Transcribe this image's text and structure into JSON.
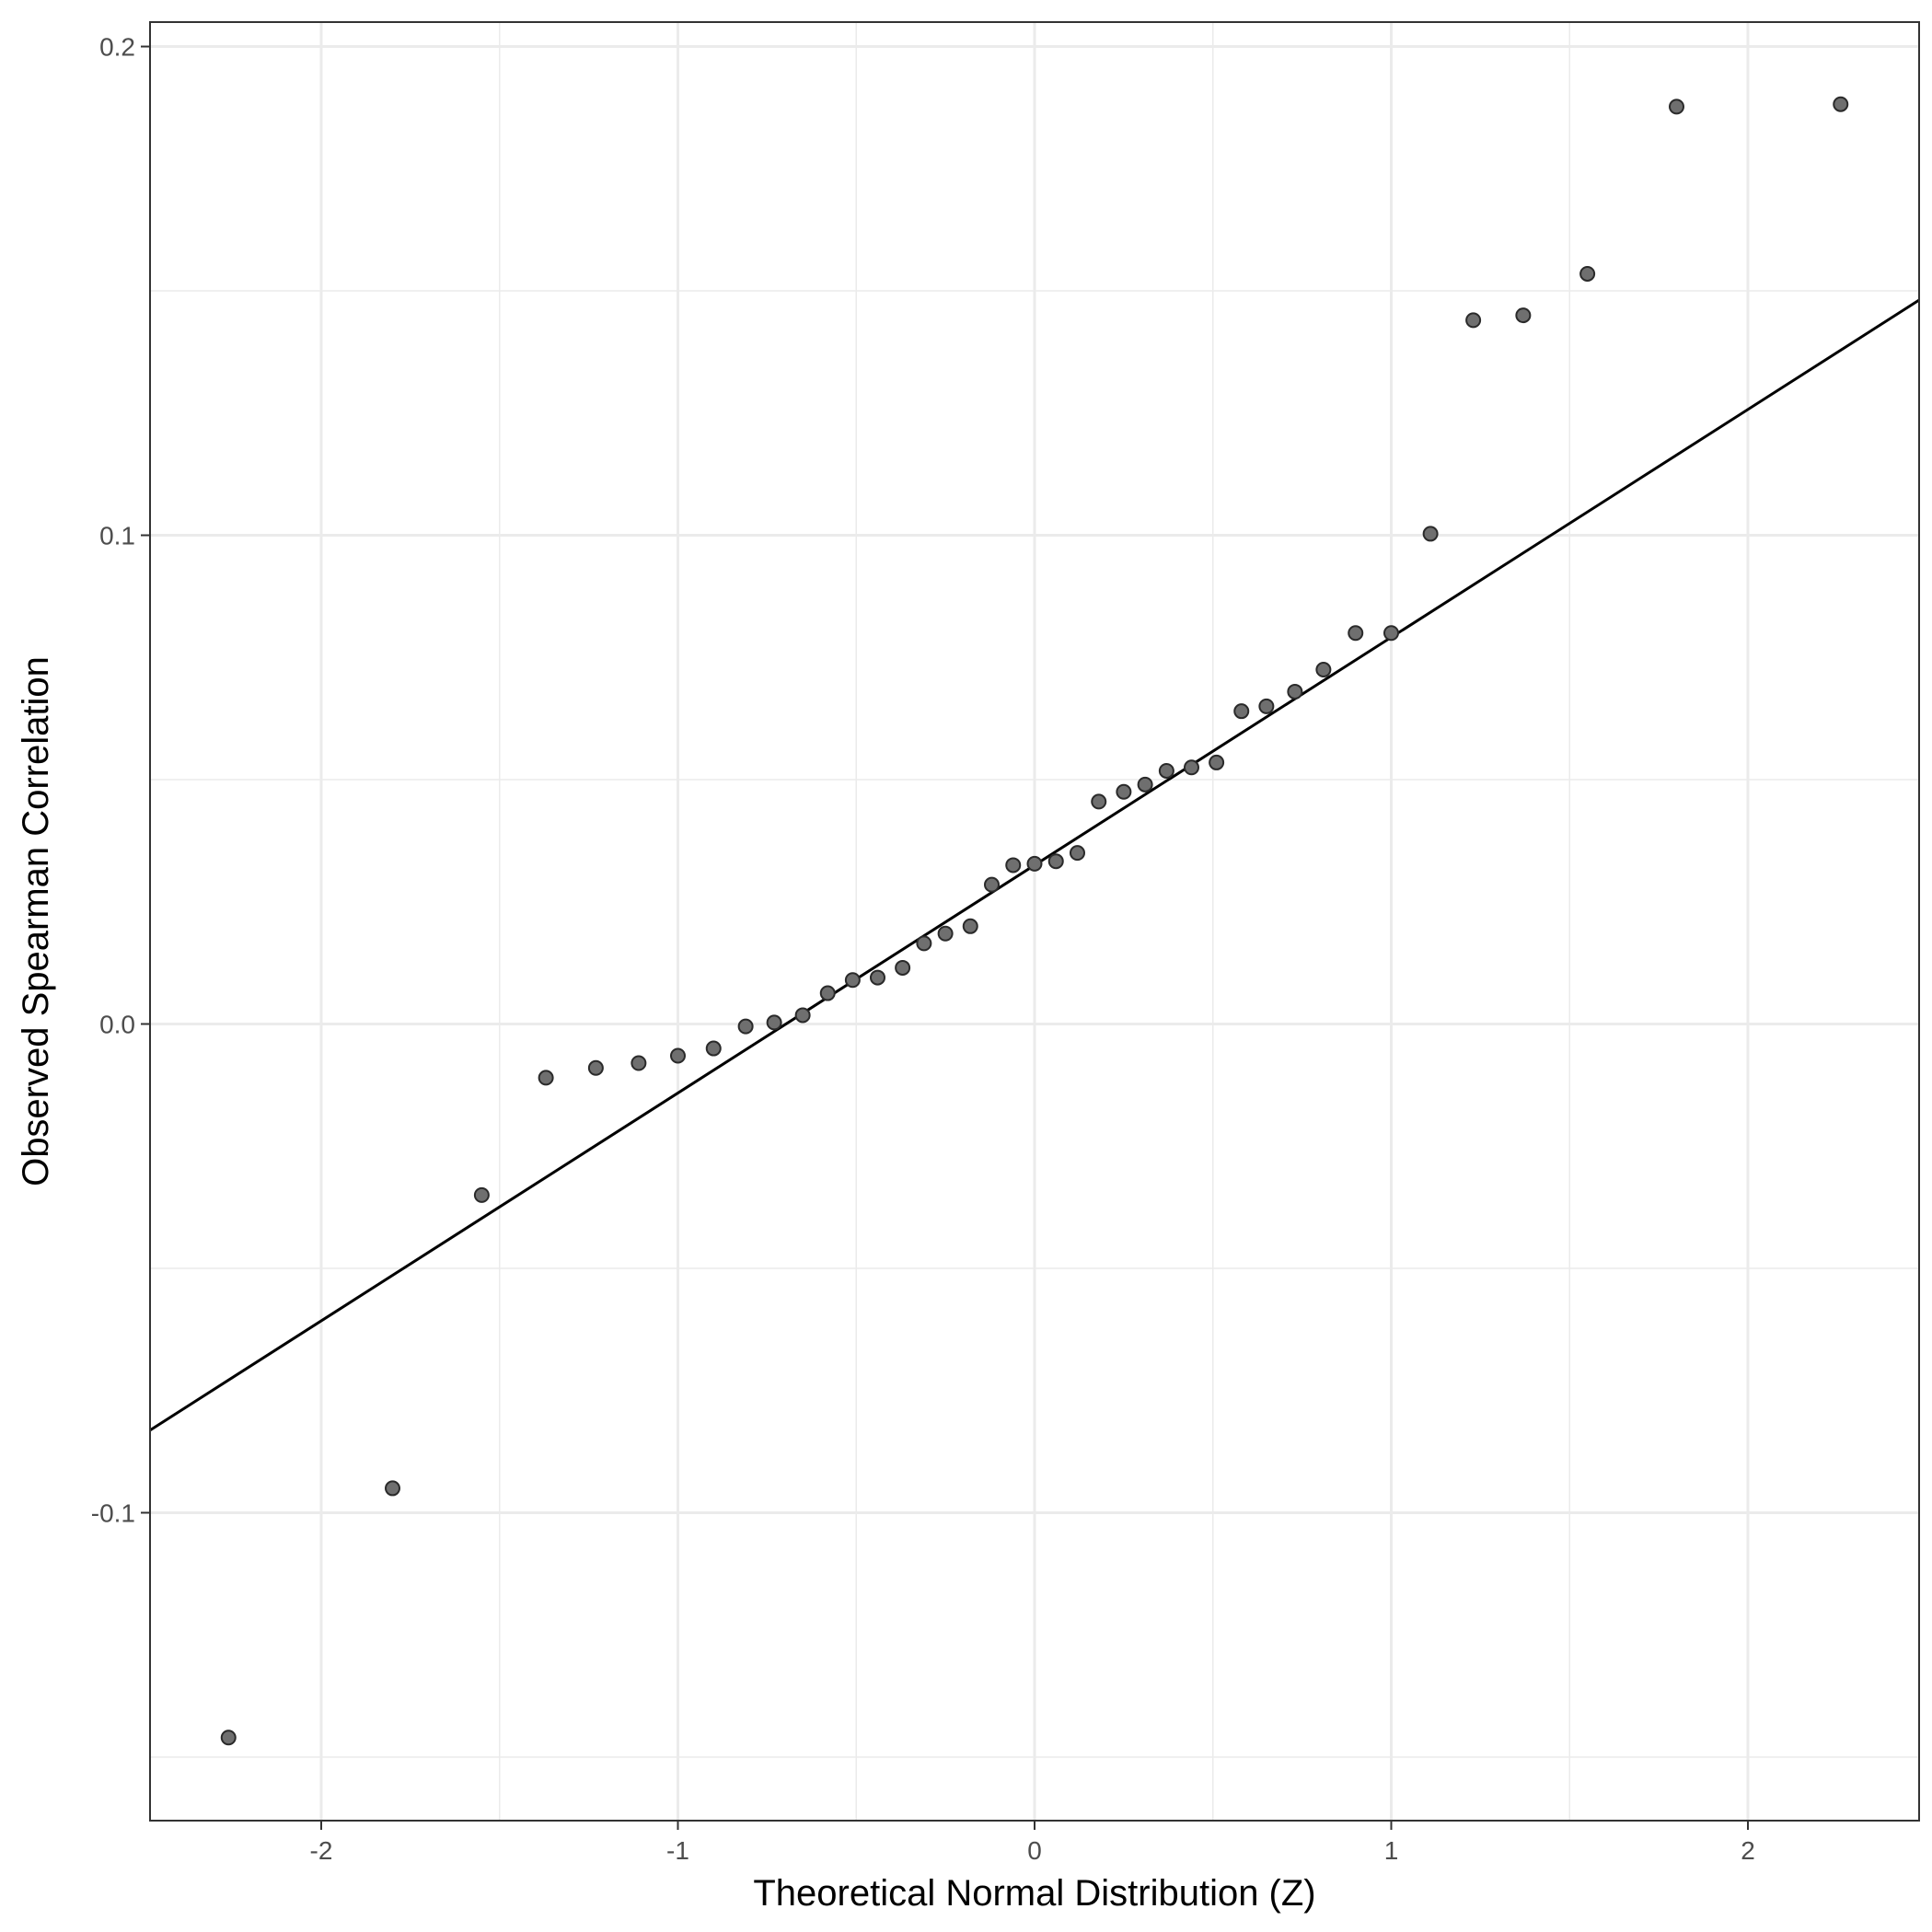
{
  "chart_data": {
    "type": "scatter",
    "xlabel": "Theoretical Normal Distribution (Z)",
    "ylabel": "Observed Spearman Correlation",
    "xlim": [
      -2.48,
      2.48
    ],
    "ylim": [
      -0.163,
      0.205
    ],
    "x_ticks": [
      -2,
      -1,
      0,
      1,
      2
    ],
    "x_tick_labels": [
      "-2",
      "-1",
      "0",
      "1",
      "2"
    ],
    "y_ticks": [
      -0.1,
      0.0,
      0.1,
      0.2
    ],
    "y_tick_labels": [
      "-0.1",
      "0.0",
      "0.1",
      "0.2"
    ],
    "grid": true,
    "reference_line": {
      "slope": 0.04662,
      "intercept": 0.0325
    },
    "points": {
      "x": [
        -2.26,
        -1.8,
        -1.55,
        -1.37,
        -1.23,
        -1.11,
        -1.0,
        -0.9,
        -0.81,
        -0.73,
        -0.65,
        -0.58,
        -0.51,
        -0.44,
        -0.37,
        -0.31,
        -0.25,
        -0.18,
        -0.12,
        -0.06,
        0.0,
        0.06,
        0.12,
        0.18,
        0.25,
        0.31,
        0.37,
        0.44,
        0.51,
        0.58,
        0.65,
        0.73,
        0.81,
        0.9,
        1.0,
        1.11,
        1.23,
        1.37,
        1.55,
        1.8,
        2.26
      ],
      "y": [
        -0.146,
        -0.095,
        -0.035,
        -0.011,
        -0.009,
        -0.008,
        -0.0065,
        -0.005,
        -0.0005,
        0.0003,
        0.0018,
        0.0063,
        0.009,
        0.0095,
        0.0115,
        0.0165,
        0.0185,
        0.02,
        0.0285,
        0.0325,
        0.0328,
        0.0333,
        0.035,
        0.0455,
        0.0475,
        0.049,
        0.0518,
        0.0525,
        0.0535,
        0.064,
        0.065,
        0.068,
        0.0725,
        0.08,
        0.08,
        0.1003,
        0.144,
        0.145,
        0.1535,
        0.1877,
        0.1882
      ]
    }
  }
}
